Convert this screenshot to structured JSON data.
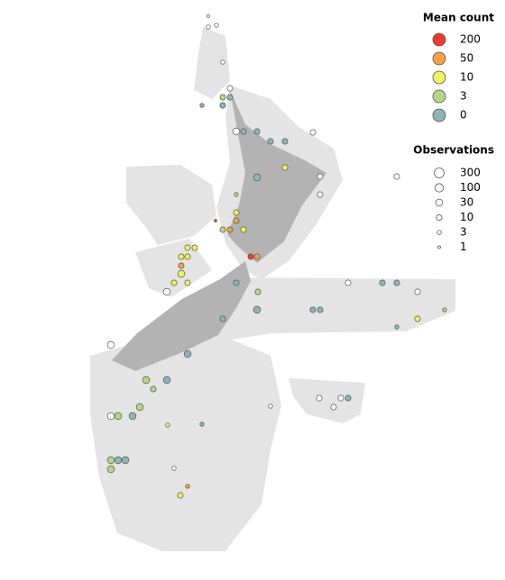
{
  "map": {
    "legend_color": {
      "title": "Mean count",
      "items": [
        {
          "value": 200,
          "color": "#f03b30"
        },
        {
          "value": 50,
          "color": "#f5a147"
        },
        {
          "value": 10,
          "color": "#eef263"
        },
        {
          "value": 3,
          "color": "#b8d585"
        },
        {
          "value": 0,
          "color": "#8fb5b5"
        }
      ]
    },
    "legend_size": {
      "title": "Observations",
      "items": [
        300,
        100,
        30,
        10,
        3,
        1
      ]
    },
    "points": [
      {
        "lon": 170.62,
        "lat": -34.36,
        "mean": null,
        "obs": 1
      },
      {
        "lon": 170.8,
        "lat": -34.56,
        "mean": null,
        "obs": 3
      },
      {
        "lon": 170.62,
        "lat": -34.6,
        "mean": null,
        "obs": 3
      },
      {
        "lon": 170.94,
        "lat": -35.38,
        "mean": null,
        "obs": 3
      },
      {
        "lon": 171.1,
        "lat": -35.96,
        "mean": null,
        "obs": 10
      },
      {
        "lon": 170.94,
        "lat": -36.16,
        "mean": 3,
        "obs": 10
      },
      {
        "lon": 171.1,
        "lat": -36.16,
        "mean": 0,
        "obs": 10
      },
      {
        "lon": 170.94,
        "lat": -36.34,
        "mean": 0,
        "obs": 10
      },
      {
        "lon": 170.48,
        "lat": -36.34,
        "mean": 0,
        "obs": 3
      },
      {
        "lon": 171.24,
        "lat": -36.92,
        "mean": null,
        "obs": 30
      },
      {
        "lon": 171.4,
        "lat": -36.92,
        "mean": 0,
        "obs": 10
      },
      {
        "lon": 171.7,
        "lat": -36.92,
        "mean": 0,
        "obs": 10
      },
      {
        "lon": 172.0,
        "lat": -37.14,
        "mean": 0,
        "obs": 10
      },
      {
        "lon": 172.32,
        "lat": -37.14,
        "mean": 0,
        "obs": 10
      },
      {
        "lon": 172.32,
        "lat": -37.72,
        "mean": 10,
        "obs": 10
      },
      {
        "lon": 171.7,
        "lat": -37.94,
        "mean": 0,
        "obs": 30
      },
      {
        "lon": 171.24,
        "lat": -38.32,
        "mean": 3,
        "obs": 3
      },
      {
        "lon": 171.24,
        "lat": -38.72,
        "mean": 10,
        "obs": 10
      },
      {
        "lon": 171.24,
        "lat": -38.9,
        "mean": 50,
        "obs": 10
      },
      {
        "lon": 171.1,
        "lat": -39.1,
        "mean": 50,
        "obs": 10
      },
      {
        "lon": 170.94,
        "lat": -39.1,
        "mean": 3,
        "obs": 10
      },
      {
        "lon": 171.4,
        "lat": -39.1,
        "mean": 10,
        "obs": 10
      },
      {
        "lon": 170.78,
        "lat": -38.9,
        "mean": 200,
        "obs": 1
      },
      {
        "lon": 170.16,
        "lat": -39.5,
        "mean": 10,
        "obs": 10
      },
      {
        "lon": 170.32,
        "lat": -39.5,
        "mean": 10,
        "obs": 10
      },
      {
        "lon": 170.02,
        "lat": -39.7,
        "mean": 10,
        "obs": 10
      },
      {
        "lon": 170.16,
        "lat": -39.7,
        "mean": 10,
        "obs": 10
      },
      {
        "lon": 170.02,
        "lat": -39.9,
        "mean": 50,
        "obs": 10
      },
      {
        "lon": 170.02,
        "lat": -40.08,
        "mean": 10,
        "obs": 30
      },
      {
        "lon": 169.86,
        "lat": -40.28,
        "mean": 10,
        "obs": 10
      },
      {
        "lon": 170.16,
        "lat": -40.28,
        "mean": 10,
        "obs": 10
      },
      {
        "lon": 171.56,
        "lat": -39.7,
        "mean": 200,
        "obs": 10
      },
      {
        "lon": 171.7,
        "lat": -39.7,
        "mean": 50,
        "obs": 10
      },
      {
        "lon": 169.7,
        "lat": -40.48,
        "mean": null,
        "obs": 30
      },
      {
        "lon": 171.24,
        "lat": -40.28,
        "mean": 0,
        "obs": 10
      },
      {
        "lon": 171.72,
        "lat": -40.48,
        "mean": 3,
        "obs": 10
      },
      {
        "lon": 170.94,
        "lat": -41.08,
        "mean": 0,
        "obs": 10
      },
      {
        "lon": 171.7,
        "lat": -40.88,
        "mean": 0,
        "obs": 30
      },
      {
        "lon": 172.94,
        "lat": -40.88,
        "mean": 0,
        "obs": 10
      },
      {
        "lon": 173.1,
        "lat": -40.88,
        "mean": 0,
        "obs": 10
      },
      {
        "lon": 175.26,
        "lat": -41.08,
        "mean": 10,
        "obs": 10
      },
      {
        "lon": 174.8,
        "lat": -41.26,
        "mean": 0,
        "obs": 3
      },
      {
        "lon": 175.86,
        "lat": -40.88,
        "mean": 3,
        "obs": 3
      },
      {
        "lon": 173.72,
        "lat": -40.28,
        "mean": null,
        "obs": 10
      },
      {
        "lon": 174.48,
        "lat": -40.28,
        "mean": 0,
        "obs": 10
      },
      {
        "lon": 174.8,
        "lat": -40.28,
        "mean": 0,
        "obs": 10
      },
      {
        "lon": 175.26,
        "lat": -40.48,
        "mean": null,
        "obs": 10
      },
      {
        "lon": 168.46,
        "lat": -41.66,
        "mean": null,
        "obs": 30
      },
      {
        "lon": 170.16,
        "lat": -41.86,
        "mean": 0,
        "obs": 30
      },
      {
        "lon": 169.7,
        "lat": -42.44,
        "mean": 0,
        "obs": 30
      },
      {
        "lon": 169.24,
        "lat": -42.44,
        "mean": 3,
        "obs": 30
      },
      {
        "lon": 169.4,
        "lat": -42.64,
        "mean": 3,
        "obs": 10
      },
      {
        "lon": 168.62,
        "lat": -43.24,
        "mean": 3,
        "obs": 30
      },
      {
        "lon": 168.94,
        "lat": -43.24,
        "mean": 0,
        "obs": 30
      },
      {
        "lon": 168.46,
        "lat": -43.24,
        "mean": null,
        "obs": 30
      },
      {
        "lon": 169.1,
        "lat": -43.04,
        "mean": 3,
        "obs": 30
      },
      {
        "lon": 168.46,
        "lat": -44.22,
        "mean": 3,
        "obs": 30
      },
      {
        "lon": 168.62,
        "lat": -44.22,
        "mean": 0,
        "obs": 30
      },
      {
        "lon": 168.78,
        "lat": -44.22,
        "mean": 0,
        "obs": 30
      },
      {
        "lon": 168.46,
        "lat": -44.42,
        "mean": 3,
        "obs": 30
      },
      {
        "lon": 170.0,
        "lat": -45.0,
        "mean": 10,
        "obs": 10
      },
      {
        "lon": 170.16,
        "lat": -44.8,
        "mean": 50,
        "obs": 3
      },
      {
        "lon": 169.86,
        "lat": -44.4,
        "mean": null,
        "obs": 3
      },
      {
        "lon": 173.72,
        "lat": -42.84,
        "mean": 0,
        "obs": 10
      },
      {
        "lon": 173.56,
        "lat": -42.84,
        "mean": null,
        "obs": 10
      },
      {
        "lon": 173.4,
        "lat": -43.04,
        "mean": null,
        "obs": 10
      },
      {
        "lon": 173.08,
        "lat": -42.84,
        "mean": null,
        "obs": 10
      },
      {
        "lon": 174.8,
        "lat": -37.92,
        "mean": null,
        "obs": 10
      },
      {
        "lon": 172.94,
        "lat": -36.94,
        "mean": null,
        "obs": 10
      },
      {
        "lon": 173.1,
        "lat": -37.92,
        "mean": null,
        "obs": 10
      },
      {
        "lon": 173.1,
        "lat": -38.32,
        "mean": null,
        "obs": 10
      },
      {
        "lon": 172.0,
        "lat": -43.02,
        "mean": null,
        "obs": 3
      },
      {
        "lon": 170.48,
        "lat": -43.42,
        "mean": 0,
        "obs": 3
      },
      {
        "lon": 169.72,
        "lat": -43.44,
        "mean": 10,
        "obs": 3
      }
    ]
  }
}
